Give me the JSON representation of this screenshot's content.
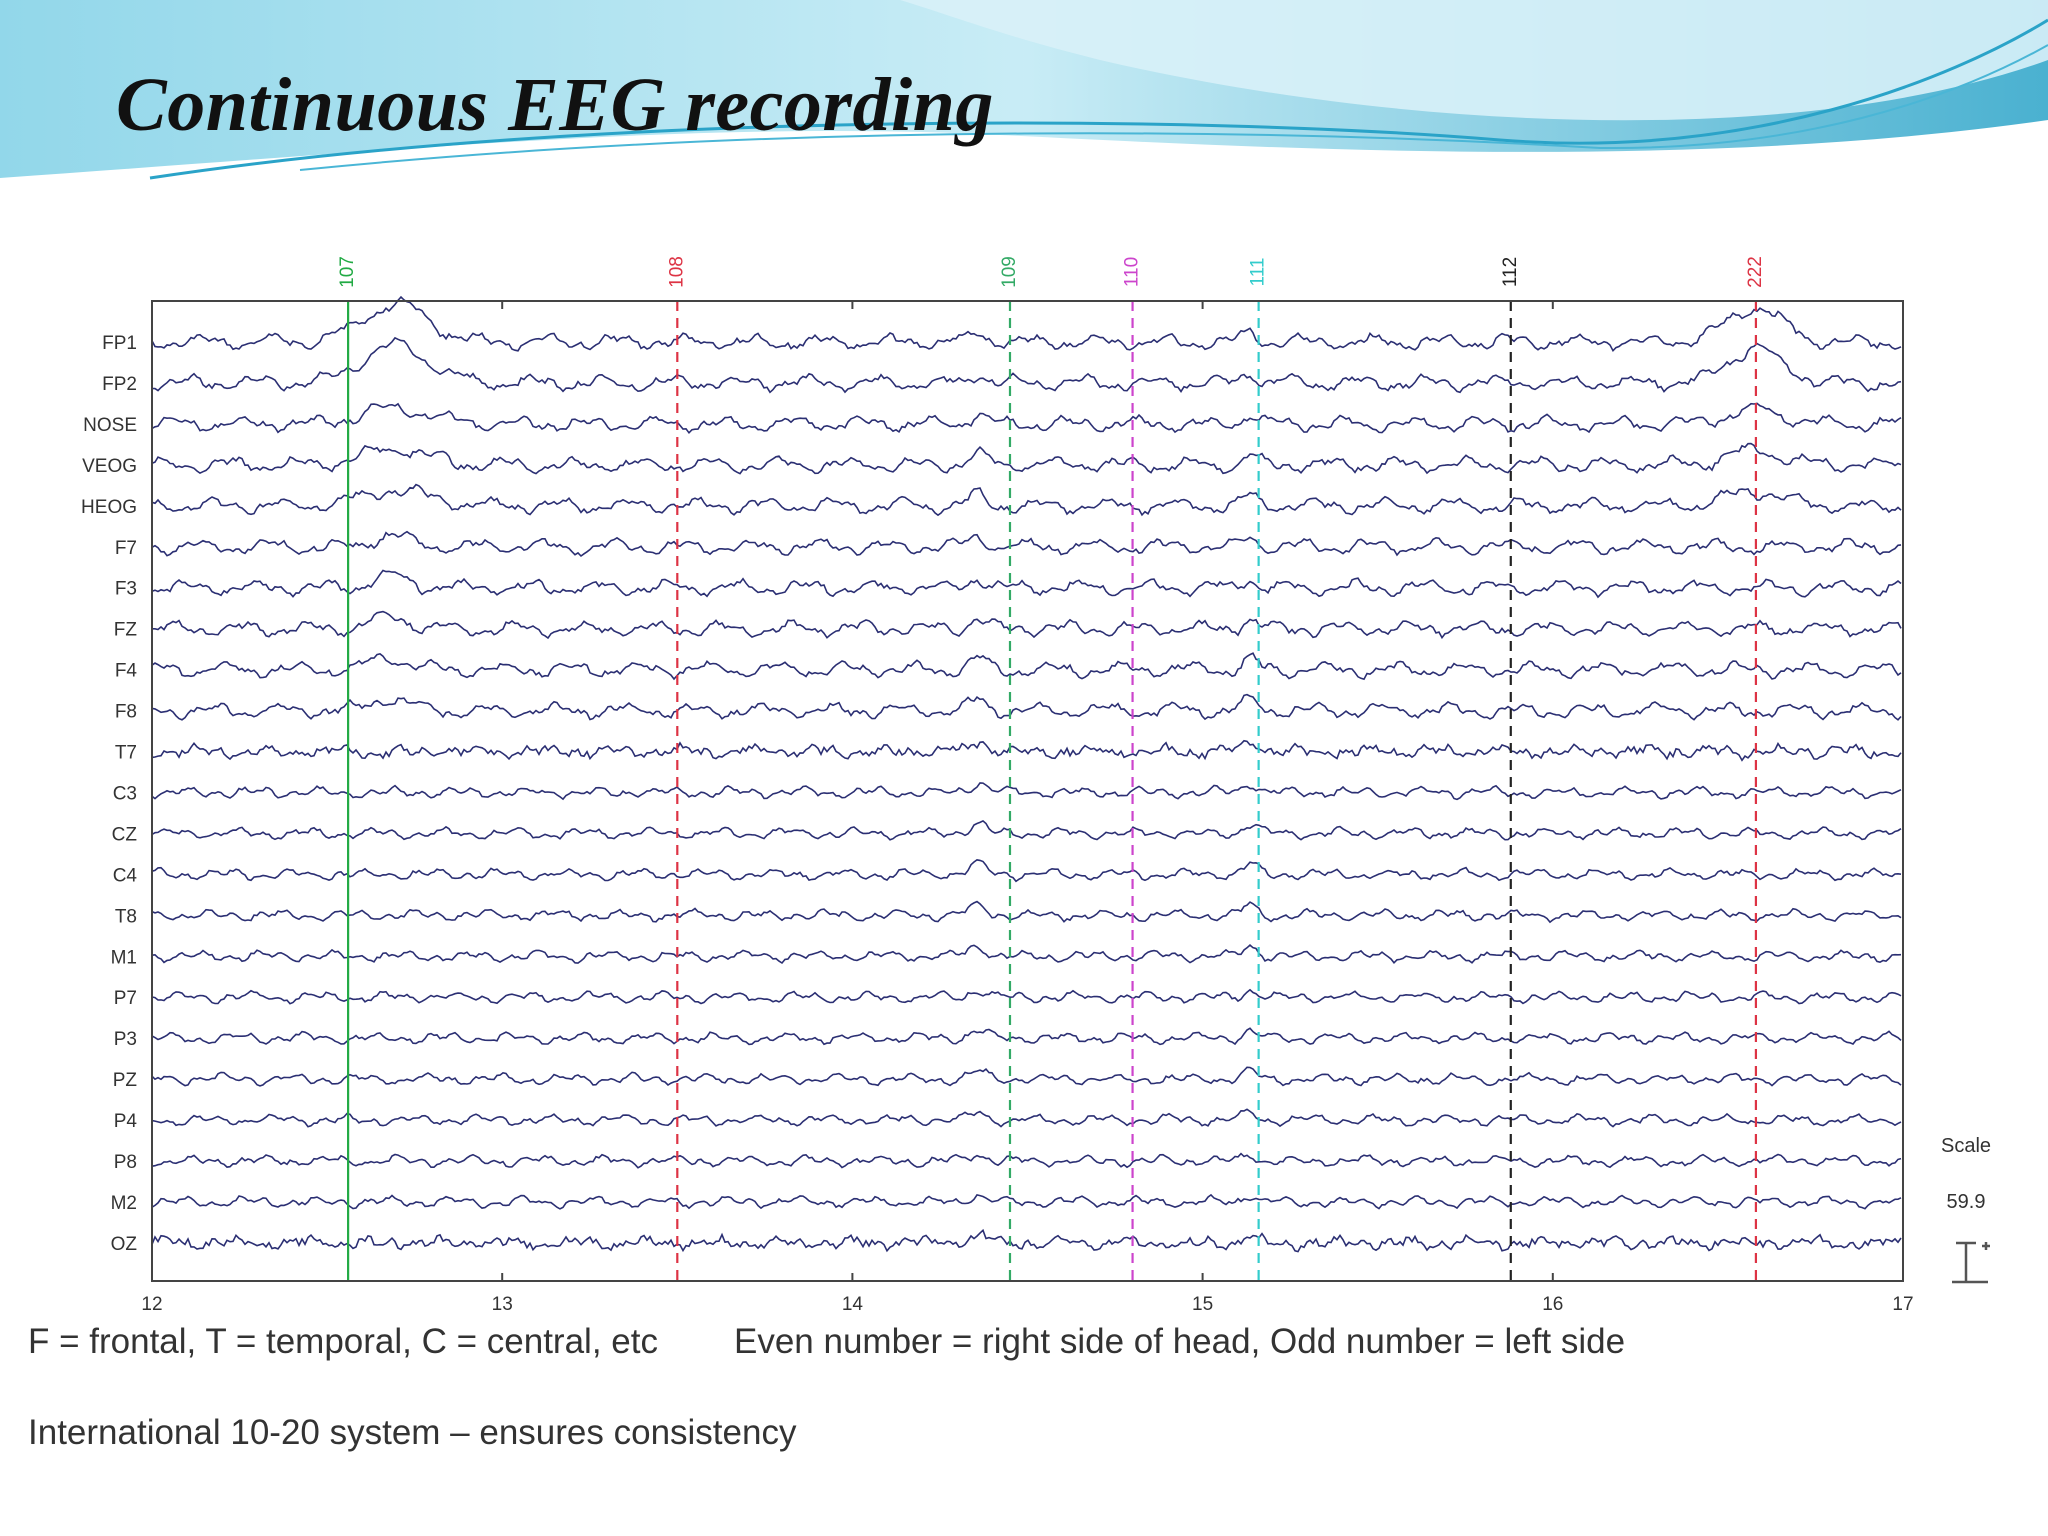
{
  "slide": {
    "title": "Continuous EEG recording",
    "captions": [
      "F = frontal, T = temporal,  C = central, etc",
      "Even number  = right side of head, Odd number = left side",
      "International 10-20 system  – ensures consistency"
    ]
  },
  "colors": {
    "trace": "#2b2f73",
    "banner_light": "#d8f1f8",
    "banner_mid": "#7fd0e6",
    "banner_dark": "#2aa3c8"
  },
  "chart_data": {
    "type": "line",
    "xlim": [
      12,
      17
    ],
    "xticks": [
      "12",
      "13",
      "14",
      "15",
      "16",
      "17"
    ],
    "channels": [
      "FP1",
      "FP2",
      "NOSE",
      "VEOG",
      "HEOG",
      "F7",
      "F3",
      "FZ",
      "F4",
      "F8",
      "T7",
      "C3",
      "CZ",
      "C4",
      "T8",
      "M1",
      "P7",
      "P3",
      "PZ",
      "P4",
      "P8",
      "M2",
      "OZ"
    ],
    "events": [
      {
        "label": "107",
        "x": 12.56,
        "color": "#22aa44",
        "style": "solid"
      },
      {
        "label": "108",
        "x": 13.5,
        "color": "#dd3344",
        "style": "dashed"
      },
      {
        "label": "109",
        "x": 14.45,
        "color": "#33aa66",
        "style": "dashed"
      },
      {
        "label": "110",
        "x": 14.8,
        "color": "#cc44cc",
        "style": "dashed"
      },
      {
        "label": "111",
        "x": 15.16,
        "color": "#33cccc",
        "style": "dashed"
      },
      {
        "label": "112",
        "x": 15.88,
        "color": "#222222",
        "style": "dashed"
      },
      {
        "label": "222",
        "x": 16.58,
        "color": "#dd3344",
        "style": "dashed"
      }
    ],
    "scale_label": "Scale",
    "scale_value": "59.9",
    "grid": false
  }
}
